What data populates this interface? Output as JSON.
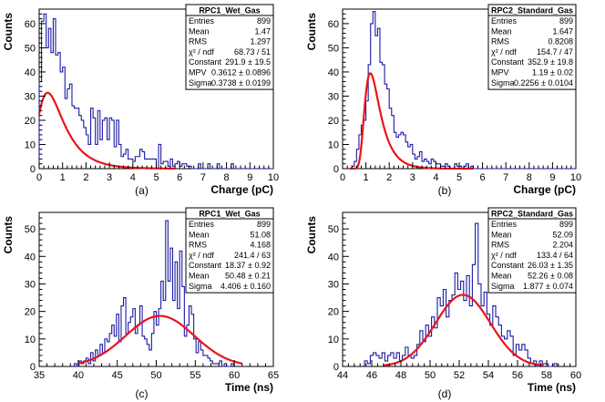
{
  "chart_data": [
    {
      "type": "histogram",
      "caption": "(a)",
      "xlabel": "Charge (pC)",
      "ylabel": "Counts",
      "xlim": [
        0,
        10
      ],
      "ylim": [
        0,
        66
      ],
      "xticks": [
        0,
        1,
        2,
        3,
        4,
        5,
        6,
        7,
        8,
        9,
        10
      ],
      "yticks": [
        0,
        10,
        20,
        30,
        40,
        50,
        60
      ],
      "bin_width": 0.1,
      "bins_start": 0,
      "counts": [
        36,
        61,
        64,
        50,
        58,
        48,
        62,
        47,
        48,
        40,
        42,
        29,
        33,
        35,
        26,
        25,
        25,
        22,
        20,
        17,
        14,
        10,
        25,
        21,
        10,
        24,
        12,
        20,
        21,
        12,
        21,
        20,
        9,
        20,
        10,
        5,
        6,
        8,
        4,
        4,
        3,
        5,
        5,
        8,
        7,
        4,
        4,
        4,
        4,
        4,
        0,
        10,
        2,
        3,
        3,
        1,
        4,
        1,
        2,
        3,
        1,
        2,
        2,
        1,
        1,
        0,
        0,
        0,
        2,
        0,
        0,
        0,
        2,
        0,
        0,
        0,
        2,
        0,
        0,
        0,
        0,
        0,
        2,
        0,
        0,
        0,
        0,
        0,
        0,
        0,
        0,
        0,
        0,
        0,
        0,
        0,
        0,
        0,
        0,
        0
      ],
      "fit": {
        "model": "landau",
        "constant": 291.9,
        "mpv": 0.3612,
        "sigma": 0.3738,
        "x_range": [
          0.0,
          5.8
        ]
      },
      "stats": {
        "title": "RPC1_Wet_Gas",
        "rows": [
          {
            "label": "Entries",
            "value": "899"
          },
          {
            "label": "Mean",
            "value": "1.47"
          },
          {
            "label": "RMS",
            "value": "1.297"
          },
          {
            "label": "χ² / ndf",
            "value": "68.73 / 51"
          },
          {
            "label": "Constant",
            "value": "291.9 ± 19.5"
          },
          {
            "label": "MPV",
            "value": "0.3612 ± 0.0896"
          },
          {
            "label": "Sigma",
            "value": "0.3738 ± 0.0199"
          }
        ]
      }
    },
    {
      "type": "histogram",
      "caption": "(b)",
      "xlabel": "Charge (pC)",
      "ylabel": "Counts",
      "xlim": [
        0,
        10
      ],
      "ylim": [
        0,
        66
      ],
      "xticks": [
        0,
        1,
        2,
        3,
        4,
        5,
        6,
        7,
        8,
        9,
        10
      ],
      "yticks": [
        0,
        10,
        20,
        30,
        40,
        50,
        60
      ],
      "bin_width": 0.1,
      "bins_start": 0,
      "counts": [
        0,
        0,
        0,
        0,
        1,
        3,
        8,
        14,
        18,
        20,
        28,
        43,
        60,
        65,
        55,
        58,
        44,
        43,
        35,
        33,
        25,
        22,
        15,
        13,
        14,
        15,
        14,
        11,
        9,
        10,
        6,
        4,
        5,
        7,
        3,
        4,
        3,
        2,
        4,
        3,
        2,
        2,
        1,
        1,
        2,
        1,
        0,
        0,
        2,
        1,
        1,
        0,
        1,
        2,
        0,
        1,
        0,
        0,
        0,
        0,
        0,
        0,
        0,
        0,
        0,
        0,
        0,
        0,
        0,
        0,
        0,
        0,
        0,
        0,
        0,
        0,
        0,
        0,
        0,
        0,
        0,
        0,
        0,
        0,
        0,
        0,
        0,
        0,
        0,
        0,
        0,
        0,
        0,
        0,
        0,
        0,
        0,
        0,
        0,
        0
      ],
      "fit": {
        "model": "landau",
        "constant": 352.9,
        "mpv": 1.19,
        "sigma": 0.2256,
        "x_range": [
          0.3,
          5.6
        ]
      },
      "stats": {
        "title": "RPC2_Standard_Gas",
        "rows": [
          {
            "label": "Entries",
            "value": "899"
          },
          {
            "label": "Mean",
            "value": "1.647"
          },
          {
            "label": "RMS",
            "value": "0.8208"
          },
          {
            "label": "χ² / ndf",
            "value": "154.7 / 47"
          },
          {
            "label": "Constant",
            "value": "352.9 ± 19.8"
          },
          {
            "label": "MPV",
            "value": "1.19 ± 0.02"
          },
          {
            "label": "Sigma",
            "value": "0.2256 ± 0.0104"
          }
        ]
      }
    },
    {
      "type": "histogram",
      "caption": "(c)",
      "xlabel": "Time (ns)",
      "ylabel": "Counts",
      "xlim": [
        35,
        65
      ],
      "ylim": [
        0,
        56
      ],
      "xticks": [
        35,
        40,
        45,
        50,
        55,
        60,
        65
      ],
      "yticks": [
        0,
        10,
        20,
        30,
        40,
        50
      ],
      "bin_width": 0.3,
      "bins_start": 39.5,
      "counts": [
        1,
        0,
        2,
        1,
        2,
        3,
        1,
        5,
        2,
        6,
        4,
        8,
        5,
        10,
        9,
        12,
        15,
        11,
        19,
        9,
        22,
        25,
        12,
        16,
        18,
        21,
        12,
        15,
        22,
        11,
        10,
        8,
        6,
        12,
        20,
        15,
        21,
        31,
        24,
        53,
        31,
        43,
        24,
        38,
        21,
        42,
        29,
        11,
        15,
        22,
        19,
        10,
        5,
        9,
        6,
        4,
        4,
        3,
        2,
        1,
        1,
        1,
        2,
        0,
        1,
        0,
        0,
        1
      ],
      "fit": {
        "model": "gaus",
        "constant": 18.37,
        "mean": 50.48,
        "sigma": 4.406,
        "x_range": [
          40.0,
          61.0
        ]
      },
      "stats": {
        "title": "RPC1_Wet_Gas",
        "rows": [
          {
            "label": "Entries",
            "value": "899"
          },
          {
            "label": "Mean",
            "value": "51.08"
          },
          {
            "label": "RMS",
            "value": "4.168"
          },
          {
            "label": "χ² / ndf",
            "value": "241.4 / 63"
          },
          {
            "label": "Constant",
            "value": "18.37 ± 0.92"
          },
          {
            "label": "Mean",
            "value": "50.48 ± 0.21"
          },
          {
            "label": "Sigma",
            "value": "4.406 ± 0.160"
          }
        ]
      }
    },
    {
      "type": "histogram",
      "caption": "(d)",
      "xlabel": "Time (ns)",
      "ylabel": "Counts",
      "xlim": [
        44,
        60
      ],
      "ylim": [
        0,
        56
      ],
      "xticks": [
        44,
        46,
        48,
        50,
        52,
        54,
        56,
        58,
        60
      ],
      "yticks": [
        0,
        10,
        20,
        30,
        40,
        50
      ],
      "bin_width": 0.2,
      "bins_start": 45.5,
      "counts": [
        2,
        1,
        4,
        5,
        4,
        3,
        5,
        2,
        4,
        5,
        3,
        5,
        2,
        4,
        7,
        4,
        3,
        4,
        8,
        13,
        9,
        15,
        11,
        18,
        14,
        25,
        22,
        28,
        18,
        24,
        26,
        34,
        28,
        31,
        24,
        33,
        22,
        37,
        52,
        30,
        22,
        27,
        19,
        15,
        22,
        18,
        15,
        11,
        10,
        13,
        11,
        4,
        8,
        6,
        8,
        6,
        3,
        1,
        2,
        0,
        2,
        1,
        1,
        0,
        0,
        1
      ],
      "fit": {
        "model": "gaus",
        "constant": 26.03,
        "mean": 52.26,
        "sigma": 1.877,
        "x_range": [
          46.8,
          57.8
        ]
      },
      "stats": {
        "title": "RPC2_Standard_Gas",
        "rows": [
          {
            "label": "Entries",
            "value": "899"
          },
          {
            "label": "Mean",
            "value": "52.09"
          },
          {
            "label": "RMS",
            "value": "2.204"
          },
          {
            "label": "χ² / ndf",
            "value": "133.4 / 64"
          },
          {
            "label": "Constant",
            "value": "26.03 ± 1.35"
          },
          {
            "label": "Mean",
            "value": "52.26 ± 0.08"
          },
          {
            "label": "Sigma",
            "value": "1.877 ± 0.074"
          }
        ]
      }
    }
  ],
  "colors": {
    "histogram": "#1a1aa6",
    "fit": "#e8141b",
    "axis": "#000000"
  }
}
